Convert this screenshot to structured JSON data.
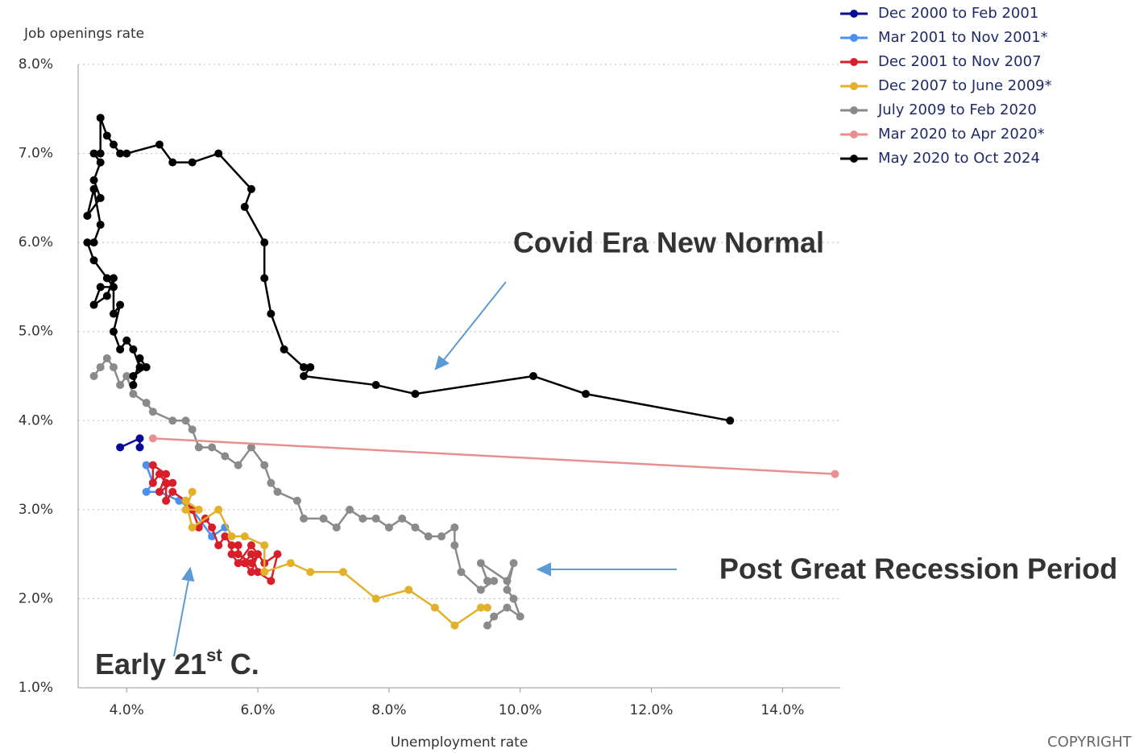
{
  "chart_data": {
    "type": "line",
    "y_axis_label": "Job openings rate",
    "x_axis_label": "Unemployment rate",
    "xlim": [
      3.26,
      14.88
    ],
    "ylim": [
      1,
      8
    ],
    "xticks": [
      {
        "value": 4,
        "label": "4.0%"
      },
      {
        "value": 6,
        "label": "6.0%"
      },
      {
        "value": 8,
        "label": "8.0%"
      },
      {
        "value": 10,
        "label": "10.0%"
      },
      {
        "value": 12,
        "label": "12.0%"
      },
      {
        "value": 14,
        "label": "14.0%"
      }
    ],
    "yticks": [
      {
        "value": 1,
        "label": "1.0%"
      },
      {
        "value": 2,
        "label": "2.0%"
      },
      {
        "value": 3,
        "label": "3.0%"
      },
      {
        "value": 4,
        "label": "4.0%"
      },
      {
        "value": 5,
        "label": "5.0%"
      },
      {
        "value": 6,
        "label": "6.0%"
      },
      {
        "value": 7,
        "label": "7.0%"
      },
      {
        "value": 8,
        "label": "8.0%"
      }
    ],
    "grid": true,
    "legend_position": "top-right",
    "series": [
      {
        "name": "Dec 2000 to Feb 2001",
        "color": "#0a0a9a",
        "x": [
          3.9,
          4.2,
          4.2
        ],
        "values": [
          3.7,
          3.8,
          3.7
        ]
      },
      {
        "name": "Mar 2001 to Nov 2001*",
        "color": "#4a90f0",
        "x": [
          4.3,
          4.4,
          4.3,
          4.5,
          4.8,
          5.0,
          5.3,
          5.5
        ],
        "values": [
          3.5,
          3.3,
          3.2,
          3.2,
          3.1,
          3.0,
          2.7,
          2.8
        ]
      },
      {
        "name": "Dec 2001 to Nov 2007",
        "color": "#d81e28",
        "x": [
          5.7,
          5.7,
          5.9,
          6.0,
          5.9,
          5.8,
          5.9,
          6.0,
          6.2,
          6.3,
          6.1,
          5.9,
          5.7,
          5.6,
          5.6,
          5.5,
          5.4,
          5.3,
          5.2,
          5.1,
          5.0,
          4.9,
          4.7,
          4.6,
          4.6,
          4.5,
          4.4,
          4.4,
          4.6,
          4.5,
          4.7
        ],
        "values": [
          2.6,
          2.5,
          2.4,
          2.5,
          2.3,
          2.4,
          2.5,
          2.3,
          2.2,
          2.5,
          2.4,
          2.6,
          2.4,
          2.5,
          2.6,
          2.7,
          2.6,
          2.8,
          2.9,
          2.8,
          3.0,
          3.1,
          3.2,
          3.1,
          3.3,
          3.4,
          3.3,
          3.5,
          3.4,
          3.2,
          3.3
        ]
      },
      {
        "name": "Dec 2007 to June 2009*",
        "color": "#e3b02a",
        "x": [
          5.0,
          4.9,
          5.1,
          4.9,
          5.0,
          5.4,
          5.6,
          5.8,
          6.1,
          6.1,
          6.5,
          6.8,
          7.3,
          7.8,
          8.3,
          8.7,
          9.0,
          9.4,
          9.5
        ],
        "values": [
          3.2,
          3.0,
          3.0,
          3.1,
          2.8,
          3.0,
          2.7,
          2.7,
          2.6,
          2.3,
          2.4,
          2.3,
          2.3,
          2.0,
          2.1,
          1.9,
          1.7,
          1.9,
          1.9
        ]
      },
      {
        "name": "July 2009 to Feb 2020",
        "color": "#8a8a8a",
        "x": [
          9.5,
          9.6,
          9.8,
          10.0,
          9.9,
          9.8,
          9.9,
          9.8,
          9.4,
          9.5,
          9.6,
          9.4,
          9.1,
          9.0,
          9.0,
          8.8,
          8.6,
          8.4,
          8.2,
          8.0,
          7.8,
          7.6,
          7.4,
          7.2,
          7.0,
          6.7,
          6.6,
          6.3,
          6.2,
          6.1,
          5.9,
          5.7,
          5.5,
          5.3,
          5.1,
          5.0,
          4.9,
          4.7,
          4.4,
          4.3,
          4.1,
          4.0,
          3.9,
          3.8,
          3.7,
          3.6,
          3.5
        ],
        "values": [
          1.7,
          1.8,
          1.9,
          1.8,
          2.0,
          2.1,
          2.4,
          2.2,
          2.4,
          2.2,
          2.2,
          2.1,
          2.3,
          2.6,
          2.8,
          2.7,
          2.7,
          2.8,
          2.9,
          2.8,
          2.9,
          2.9,
          3.0,
          2.8,
          2.9,
          2.9,
          3.1,
          3.2,
          3.3,
          3.5,
          3.7,
          3.5,
          3.6,
          3.7,
          3.7,
          3.9,
          4.0,
          4.0,
          4.1,
          4.2,
          4.3,
          4.5,
          4.4,
          4.6,
          4.7,
          4.6,
          4.5
        ]
      },
      {
        "name": "Mar 2020 to Apr 2020*",
        "color": "#e89090",
        "x": [
          4.4,
          14.8
        ],
        "values": [
          3.8,
          3.4
        ]
      },
      {
        "name": "May 2020 to Oct 2024",
        "color": "#000000",
        "x": [
          13.2,
          11.0,
          10.2,
          8.4,
          7.8,
          6.7,
          6.8,
          6.7,
          6.4,
          6.2,
          6.1,
          6.1,
          5.8,
          5.9,
          5.4,
          5.0,
          4.7,
          4.5,
          4.0,
          3.9,
          3.8,
          3.7,
          3.6,
          3.6,
          3.5,
          3.6,
          3.5,
          3.6,
          3.4,
          3.5,
          3.6,
          3.5,
          3.4,
          3.5,
          3.7,
          3.8,
          3.6,
          3.5,
          3.7,
          3.8,
          3.8,
          3.9,
          3.8,
          3.9,
          4.0,
          4.1,
          4.2,
          4.1,
          4.3,
          4.2,
          4.1
        ],
        "values": [
          4.0,
          4.3,
          4.5,
          4.3,
          4.4,
          4.5,
          4.6,
          4.6,
          4.8,
          5.2,
          5.6,
          6.0,
          6.4,
          6.6,
          7.0,
          6.9,
          6.9,
          7.1,
          7.0,
          7.0,
          7.1,
          7.2,
          7.4,
          7.0,
          7.0,
          6.9,
          6.7,
          6.5,
          6.3,
          6.6,
          6.2,
          6.0,
          6.0,
          5.8,
          5.6,
          5.5,
          5.5,
          5.3,
          5.4,
          5.6,
          5.2,
          5.3,
          5.0,
          4.8,
          4.9,
          4.8,
          4.6,
          4.5,
          4.6,
          4.7,
          4.4
        ]
      }
    ],
    "annotations": [
      {
        "text": "Covid Era New Normal",
        "color": "#ff0000"
      },
      {
        "text": "Post Great Recession Period",
        "color": "#000000"
      },
      {
        "parts": [
          "Early 21",
          "st",
          " C."
        ],
        "color": "#000000"
      }
    ],
    "footer": "COPYRIGHT"
  }
}
